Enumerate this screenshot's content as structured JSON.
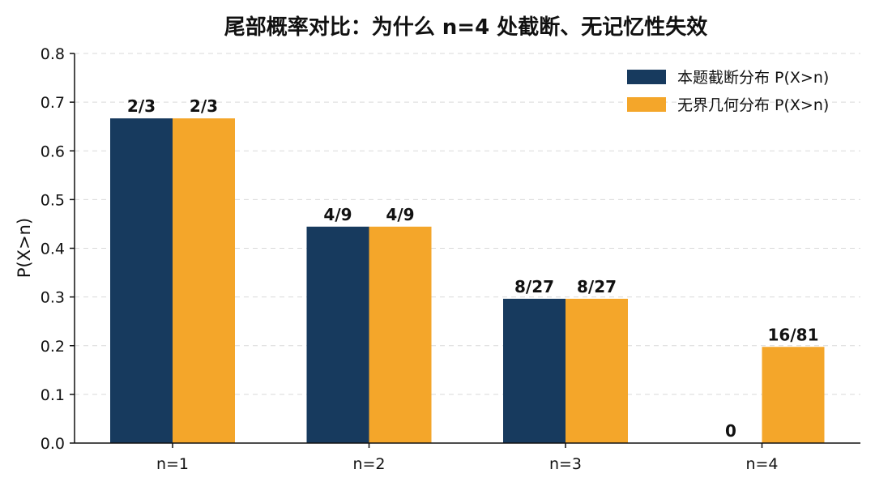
{
  "chart_data": {
    "type": "bar",
    "title": "尾部概率对比：为什么 n=4 处截断、无记忆性失效",
    "xlabel": "",
    "ylabel": "P(X>n)",
    "categories": [
      "n=1",
      "n=2",
      "n=3",
      "n=4"
    ],
    "ylim": [
      0,
      0.8
    ],
    "yticks": [
      "0.0",
      "0.1",
      "0.2",
      "0.3",
      "0.4",
      "0.5",
      "0.6",
      "0.7",
      "0.8"
    ],
    "grid": "horizontal dashed",
    "legend_position": "top-right",
    "series": [
      {
        "name": "本题截断分布 P(X>n)",
        "color": "#173A5E",
        "values": [
          0.6667,
          0.4444,
          0.2963,
          0
        ],
        "labels": [
          "2/3",
          "4/9",
          "8/27",
          "0"
        ]
      },
      {
        "name": "无界几何分布 P(X>n)",
        "color": "#F4A62A",
        "values": [
          0.6667,
          0.4444,
          0.2963,
          0.1975
        ],
        "labels": [
          "2/3",
          "4/9",
          "8/27",
          "16/81"
        ]
      }
    ]
  }
}
